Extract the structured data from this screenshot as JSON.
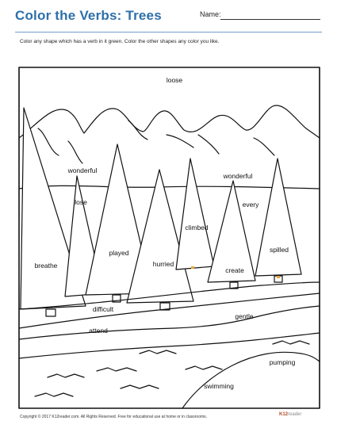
{
  "header": {
    "title": "Color the Verbs: Trees",
    "name_label": "Name:"
  },
  "instructions": "Color any shape which has a verb in it green. Color the other shapes any color you like.",
  "words": {
    "sky": "loose",
    "tree1_top": "wonderful",
    "tree1": "breathe",
    "tree2": "lose",
    "tree3": "played",
    "tree4": "hurried",
    "tree5": "climbed",
    "tree6_top": "wonderful",
    "tree6": "create",
    "sky_right": "every",
    "tree7": "spilled",
    "ground1": "difficult",
    "path": "attend",
    "ground2": "gentle",
    "field1": "pumping",
    "field2": "swimming"
  },
  "footer": "Copyright © 2017 K12reader.com. All Rights Reserved. Free for educational use at home or in classrooms.",
  "logo": {
    "mark": "K12",
    "text": "reader"
  }
}
